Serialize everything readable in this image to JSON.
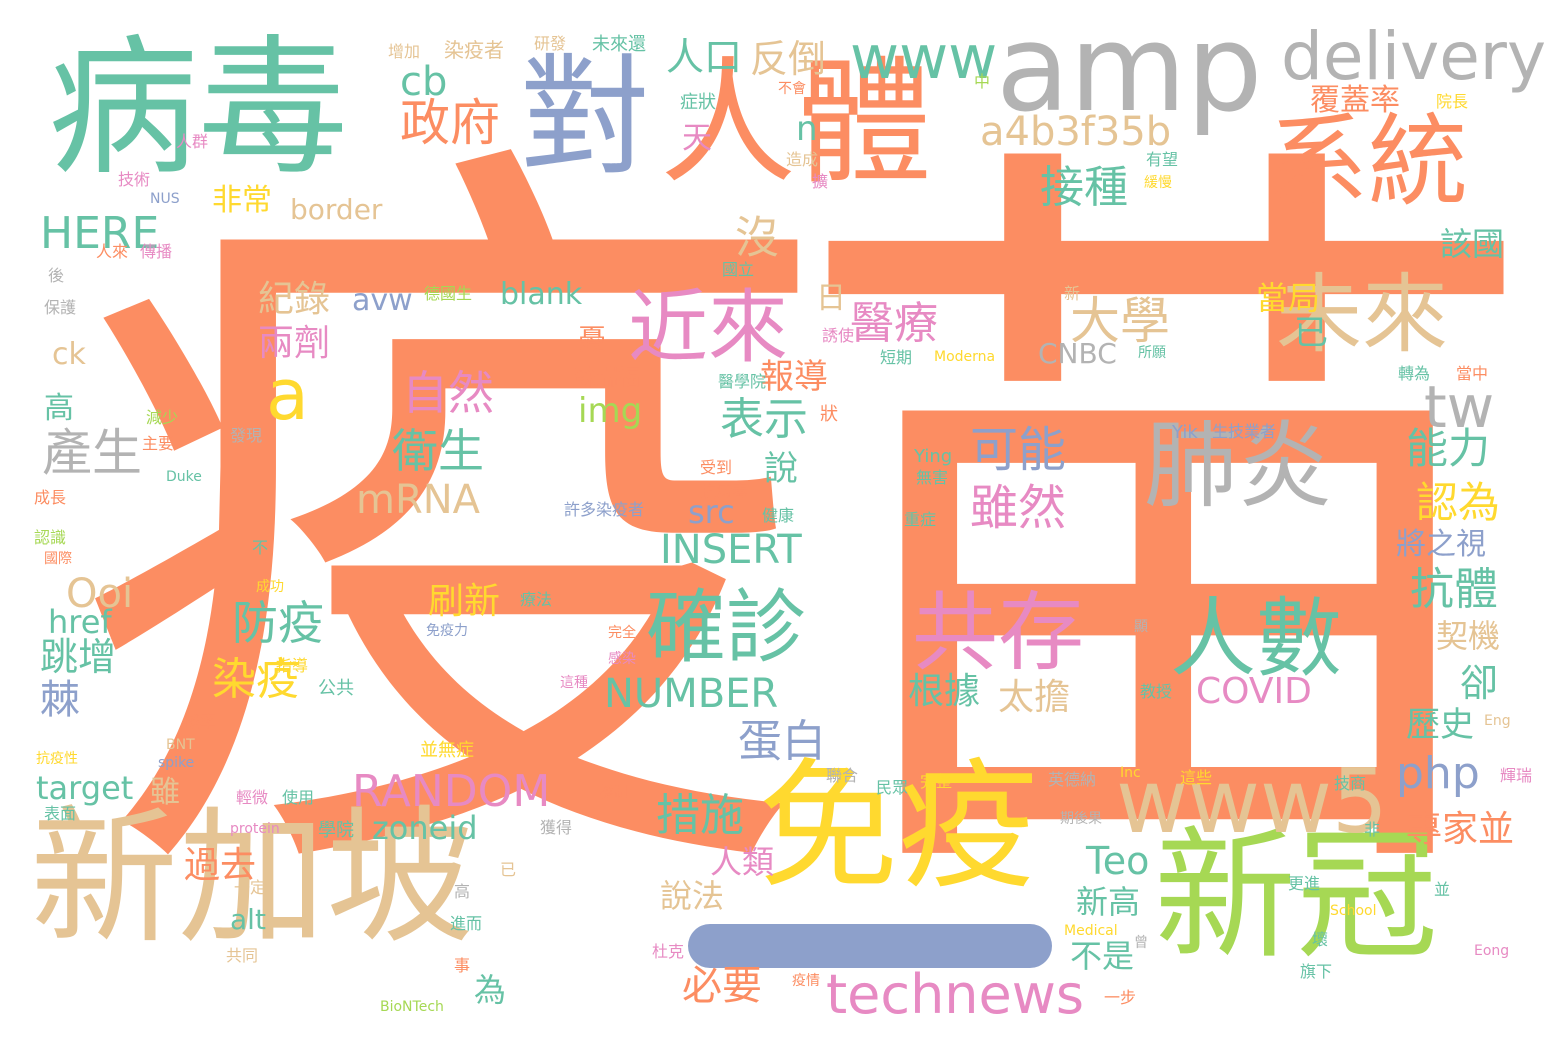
{
  "palette": {
    "orange": "#fc8d62",
    "teal": "#66c2a5",
    "blue": "#8da0cb",
    "pink": "#e78ac3",
    "green": "#a6d854",
    "yellow": "#ffd92f",
    "tan": "#e5c494",
    "gray": "#b3b3b3"
  },
  "words": [
    {
      "text": "疫",
      "color": "orange"
    },
    {
      "text": "苗",
      "color": "orange"
    },
    {
      "text": "病毒",
      "color": "teal"
    },
    {
      "text": "對",
      "color": "blue"
    },
    {
      "text": "amp",
      "color": "gray"
    },
    {
      "text": "delivery",
      "color": "gray"
    },
    {
      "text": "人體",
      "color": "orange"
    },
    {
      "text": "系統",
      "color": "orange"
    },
    {
      "text": "www",
      "color": "teal"
    },
    {
      "text": "新加坡",
      "color": "tan"
    },
    {
      "text": "免疫",
      "color": "yellow"
    },
    {
      "text": "新冠",
      "color": "green"
    },
    {
      "text": "www5",
      "color": "tan"
    },
    {
      "text": "technews",
      "color": "pink"
    },
    {
      "text": "近來",
      "color": "pink"
    },
    {
      "text": "未來",
      "color": "tan"
    },
    {
      "text": "肺炎",
      "color": "gray"
    },
    {
      "text": "共存",
      "color": "pink"
    },
    {
      "text": "人數",
      "color": "teal"
    },
    {
      "text": "確診",
      "color": "teal"
    },
    {
      "text": "a4b3f35b",
      "color": "tan"
    },
    {
      "text": "政府",
      "color": "orange"
    },
    {
      "text": "cb",
      "color": "teal"
    },
    {
      "text": "反倒",
      "color": "tan"
    },
    {
      "text": "人口",
      "color": "teal"
    },
    {
      "text": "a",
      "color": "yellow"
    },
    {
      "text": "tw",
      "color": "gray"
    },
    {
      "text": "HERE",
      "color": "teal"
    },
    {
      "text": "border",
      "color": "tan"
    },
    {
      "text": "非常",
      "color": "yellow"
    },
    {
      "text": "接種",
      "color": "teal"
    },
    {
      "text": "大學",
      "color": "tan"
    },
    {
      "text": "醫療",
      "color": "pink"
    },
    {
      "text": "紀錄",
      "color": "tan"
    },
    {
      "text": "兩劑",
      "color": "pink"
    },
    {
      "text": "avw",
      "color": "blue"
    },
    {
      "text": "blank",
      "color": "teal"
    },
    {
      "text": "自然",
      "color": "pink"
    },
    {
      "text": "衛生",
      "color": "teal"
    },
    {
      "text": "產生",
      "color": "gray"
    },
    {
      "text": "mRNA",
      "color": "tan"
    },
    {
      "text": "表示",
      "color": "teal"
    },
    {
      "text": "img",
      "color": "green"
    },
    {
      "text": "報導",
      "color": "orange"
    },
    {
      "text": "可能",
      "color": "blue"
    },
    {
      "text": "雖然",
      "color": "pink"
    },
    {
      "text": "INSERT",
      "color": "teal"
    },
    {
      "text": "src",
      "color": "blue"
    },
    {
      "text": "NUMBER",
      "color": "teal"
    },
    {
      "text": "RANDOM",
      "color": "pink"
    },
    {
      "text": "zoneid",
      "color": "teal"
    },
    {
      "text": "措施",
      "color": "teal"
    },
    {
      "text": "蛋白",
      "color": "blue"
    },
    {
      "text": "php",
      "color": "blue"
    },
    {
      "text": "能力",
      "color": "teal"
    },
    {
      "text": "認為",
      "color": "yellow"
    },
    {
      "text": "抗體",
      "color": "teal"
    },
    {
      "text": "COVID",
      "color": "pink"
    },
    {
      "text": "根據",
      "color": "teal"
    },
    {
      "text": "太擔",
      "color": "tan"
    },
    {
      "text": "防疫",
      "color": "teal"
    },
    {
      "text": "染疫",
      "color": "yellow"
    },
    {
      "text": "刷新",
      "color": "yellow"
    },
    {
      "text": "Ooi",
      "color": "tan"
    },
    {
      "text": "href",
      "color": "teal"
    },
    {
      "text": "跳增",
      "color": "teal"
    },
    {
      "text": "target",
      "color": "teal"
    },
    {
      "text": "Teo",
      "color": "teal"
    },
    {
      "text": "新高",
      "color": "teal"
    },
    {
      "text": "不是",
      "color": "teal"
    },
    {
      "text": "必要",
      "color": "orange"
    },
    {
      "text": "專家並",
      "color": "orange"
    },
    {
      "text": "歷史",
      "color": "teal"
    },
    {
      "text": "覆蓋率",
      "color": "orange"
    },
    {
      "text": "當局",
      "color": "yellow"
    },
    {
      "text": "該國",
      "color": "teal"
    },
    {
      "text": "將之視",
      "color": "blue"
    },
    {
      "text": "契機",
      "color": "tan"
    },
    {
      "text": "過去",
      "color": "orange"
    },
    {
      "text": "人類",
      "color": "pink"
    },
    {
      "text": "說法",
      "color": "tan"
    },
    {
      "text": "CNBC",
      "color": "gray"
    },
    {
      "text": "ck",
      "color": "tan"
    },
    {
      "text": "高",
      "color": "teal"
    },
    {
      "text": "棘",
      "color": "blue"
    },
    {
      "text": "雖",
      "color": "tan"
    },
    {
      "text": "alt",
      "color": "teal"
    },
    {
      "text": "為",
      "color": "teal"
    },
    {
      "text": "卻",
      "color": "teal"
    },
    {
      "text": "已",
      "color": "teal"
    },
    {
      "text": "沒",
      "color": "tan"
    },
    {
      "text": "日",
      "color": "tan"
    },
    {
      "text": "說",
      "color": "teal"
    },
    {
      "text": "n",
      "color": "teal"
    },
    {
      "text": "天",
      "color": "pink"
    },
    {
      "text": "憂",
      "color": "orange"
    },
    {
      "text": "蘇瑞福",
      "color": "orange"
    },
    {
      "text": "Ying",
      "color": "teal"
    },
    {
      "text": "Yik",
      "color": "blue"
    },
    {
      "text": "生技業者",
      "color": "blue"
    },
    {
      "text": "Moderna",
      "color": "yellow"
    },
    {
      "text": "BioNTech",
      "color": "green"
    },
    {
      "text": "protein",
      "color": "pink"
    },
    {
      "text": "spike",
      "color": "blue"
    },
    {
      "text": "BNT",
      "color": "tan"
    },
    {
      "text": "Duke",
      "color": "teal"
    },
    {
      "text": "NUS",
      "color": "blue"
    },
    {
      "text": "Medical",
      "color": "yellow"
    },
    {
      "text": "School",
      "color": "yellow"
    },
    {
      "text": "Eong",
      "color": "pink"
    },
    {
      "text": "Eng",
      "color": "tan"
    },
    {
      "text": "Inc",
      "color": "yellow"
    },
    {
      "text": "染疫者",
      "color": "tan"
    },
    {
      "text": "研發",
      "color": "tan"
    },
    {
      "text": "未來還",
      "color": "teal"
    },
    {
      "text": "增加",
      "color": "tan"
    },
    {
      "text": "症狀",
      "color": "teal"
    },
    {
      "text": "院長",
      "color": "yellow"
    },
    {
      "text": "技術",
      "color": "pink"
    },
    {
      "text": "傳播",
      "color": "pink"
    },
    {
      "text": "保護",
      "color": "gray"
    },
    {
      "text": "成長",
      "color": "orange"
    },
    {
      "text": "認識",
      "color": "green"
    },
    {
      "text": "減少",
      "color": "green"
    },
    {
      "text": "主要",
      "color": "orange"
    },
    {
      "text": "發現",
      "color": "gray"
    },
    {
      "text": "抗病毒",
      "color": "orange"
    },
    {
      "text": "健康",
      "color": "teal"
    },
    {
      "text": "受到",
      "color": "orange"
    },
    {
      "text": "許多染疫者",
      "color": "blue"
    },
    {
      "text": "並無症",
      "color": "yellow"
    },
    {
      "text": "輕微",
      "color": "pink"
    },
    {
      "text": "使用",
      "color": "teal"
    },
    {
      "text": "學院",
      "color": "teal"
    },
    {
      "text": "公共",
      "color": "teal"
    },
    {
      "text": "指導",
      "color": "yellow"
    },
    {
      "text": "機率",
      "color": "orange"
    },
    {
      "text": "一定",
      "color": "tan"
    },
    {
      "text": "共同",
      "color": "tan"
    },
    {
      "text": "進而",
      "color": "teal"
    },
    {
      "text": "杜克",
      "color": "pink"
    },
    {
      "text": "英德納",
      "color": "gray"
    },
    {
      "text": "期後果",
      "color": "gray"
    },
    {
      "text": "聯合",
      "color": "gray"
    },
    {
      "text": "民眾",
      "color": "teal"
    },
    {
      "text": "完整",
      "color": "yellow"
    },
    {
      "text": "這些",
      "color": "yellow"
    },
    {
      "text": "技商",
      "color": "teal"
    },
    {
      "text": "輝瑞",
      "color": "pink"
    },
    {
      "text": "旗下",
      "color": "teal"
    },
    {
      "text": "更進",
      "color": "teal"
    },
    {
      "text": "一步",
      "color": "orange"
    },
    {
      "text": "教授",
      "color": "teal"
    },
    {
      "text": "短期",
      "color": "teal"
    },
    {
      "text": "國立",
      "color": "teal"
    },
    {
      "text": "醫學院",
      "color": "teal"
    },
    {
      "text": "轉為",
      "color": "teal"
    },
    {
      "text": "當中",
      "color": "orange"
    },
    {
      "text": "所願",
      "color": "teal"
    },
    {
      "text": "誘使",
      "color": "pink"
    },
    {
      "text": "德國生",
      "color": "green"
    },
    {
      "text": "人群",
      "color": "pink"
    },
    {
      "text": "人來",
      "color": "orange"
    },
    {
      "text": "國際",
      "color": "orange"
    },
    {
      "text": "抗疫性",
      "color": "yellow"
    },
    {
      "text": "表面",
      "color": "teal"
    },
    {
      "text": "完全",
      "color": "orange"
    },
    {
      "text": "免疫力",
      "color": "blue"
    },
    {
      "text": "感染",
      "color": "pink"
    },
    {
      "text": "這種",
      "color": "pink"
    },
    {
      "text": "療法",
      "color": "teal"
    },
    {
      "text": "成功",
      "color": "yellow"
    },
    {
      "text": "無害",
      "color": "teal"
    },
    {
      "text": "重症",
      "color": "teal"
    },
    {
      "text": "有望",
      "color": "teal"
    },
    {
      "text": "緩慢",
      "color": "yellow"
    },
    {
      "text": "造成",
      "color": "tan"
    },
    {
      "text": "不會",
      "color": "orange"
    },
    {
      "text": "中",
      "color": "green"
    },
    {
      "text": "獲得",
      "color": "gray"
    },
    {
      "text": "疫情",
      "color": "orange"
    },
    {
      "text": "機制",
      "color": "orange"
    },
    {
      "text": "後",
      "color": "gray"
    },
    {
      "text": "不",
      "color": "teal"
    },
    {
      "text": "非",
      "color": "teal"
    },
    {
      "text": "新",
      "color": "tan"
    },
    {
      "text": "狀",
      "color": "orange"
    },
    {
      "text": "擴",
      "color": "pink"
    },
    {
      "text": "壞",
      "color": "teal"
    },
    {
      "text": "曾",
      "color": "gray"
    },
    {
      "text": "事",
      "color": "orange"
    },
    {
      "text": "顯",
      "color": "gray"
    },
    {
      "text": "並",
      "color": "teal"
    },
    {
      "text": "高",
      "color": "gray"
    },
    {
      "text": "已",
      "color": "tan"
    }
  ]
}
